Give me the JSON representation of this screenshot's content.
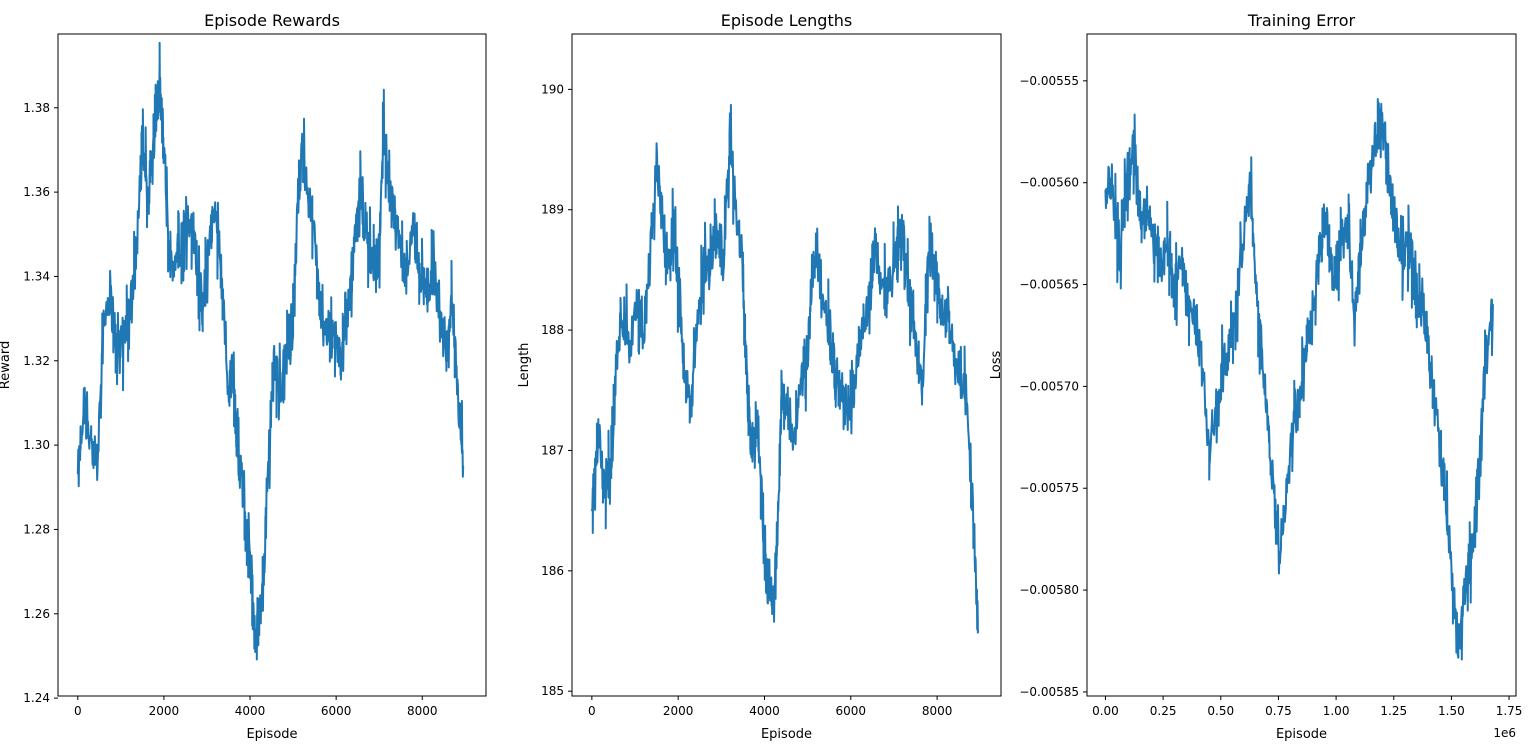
{
  "chart_data": [
    {
      "type": "line",
      "title": "Episode Rewards",
      "xlabel": "Episode",
      "ylabel": "Reward",
      "xlim": [
        -460,
        9480
      ],
      "ylim": [
        1.2405,
        1.3975
      ],
      "xticks": [
        0,
        2000,
        4000,
        6000,
        8000
      ],
      "xtick_labels": [
        "0",
        "2000",
        "4000",
        "6000",
        "8000"
      ],
      "yticks": [
        1.24,
        1.26,
        1.28,
        1.3,
        1.32,
        1.34,
        1.36,
        1.38
      ],
      "ytick_labels": [
        "1.24",
        "1.26",
        "1.28",
        "1.30",
        "1.32",
        "1.34",
        "1.36",
        "1.38"
      ],
      "x_offset_label": "",
      "color": "#1f77b4",
      "grid": false,
      "legend": "none",
      "series": [
        {
          "x": [
            0,
            150,
            300,
            450,
            600,
            750,
            900,
            1050,
            1200,
            1350,
            1500,
            1650,
            1800,
            1900,
            2000,
            2150,
            2300,
            2450,
            2600,
            2750,
            2900,
            3050,
            3200,
            3350,
            3500,
            3600,
            3700,
            3850,
            4000,
            4100,
            4200,
            4300,
            4400,
            4550,
            4700,
            4850,
            5000,
            5100,
            5200,
            5350,
            5500,
            5650,
            5800,
            5950,
            6100,
            6250,
            6400,
            6550,
            6700,
            6850,
            7000,
            7100,
            7200,
            7350,
            7500,
            7650,
            7800,
            7950,
            8100,
            8250,
            8400,
            8550,
            8700,
            8850,
            8950
          ],
          "values": [
            1.292,
            1.31,
            1.3,
            1.295,
            1.33,
            1.336,
            1.325,
            1.322,
            1.333,
            1.345,
            1.37,
            1.36,
            1.376,
            1.385,
            1.37,
            1.34,
            1.345,
            1.35,
            1.355,
            1.345,
            1.33,
            1.35,
            1.355,
            1.34,
            1.31,
            1.32,
            1.3,
            1.29,
            1.275,
            1.255,
            1.257,
            1.265,
            1.29,
            1.32,
            1.315,
            1.32,
            1.33,
            1.355,
            1.37,
            1.36,
            1.35,
            1.33,
            1.328,
            1.325,
            1.322,
            1.33,
            1.345,
            1.36,
            1.35,
            1.343,
            1.345,
            1.375,
            1.36,
            1.355,
            1.345,
            1.34,
            1.353,
            1.34,
            1.335,
            1.342,
            1.33,
            1.32,
            1.335,
            1.31,
            1.295
          ]
        }
      ]
    },
    {
      "type": "line",
      "title": "Episode Lengths",
      "xlabel": "Episode",
      "ylabel": "Length",
      "xlim": [
        -460,
        9480
      ],
      "ylim": [
        184.96,
        190.46
      ],
      "xticks": [
        0,
        2000,
        4000,
        6000,
        8000
      ],
      "xtick_labels": [
        "0",
        "2000",
        "4000",
        "6000",
        "8000"
      ],
      "yticks": [
        185,
        186,
        187,
        188,
        189,
        190
      ],
      "ytick_labels": [
        "185",
        "186",
        "187",
        "188",
        "189",
        "190"
      ],
      "x_offset_label": "",
      "color": "#1f77b4",
      "grid": false,
      "legend": "none",
      "series": [
        {
          "x": [
            0,
            150,
            300,
            450,
            600,
            750,
            900,
            1050,
            1200,
            1350,
            1500,
            1650,
            1800,
            1900,
            2000,
            2150,
            2300,
            2450,
            2600,
            2750,
            2900,
            3050,
            3200,
            3350,
            3500,
            3600,
            3700,
            3850,
            4000,
            4100,
            4200,
            4300,
            4400,
            4550,
            4700,
            4850,
            5000,
            5100,
            5200,
            5350,
            5500,
            5650,
            5800,
            5950,
            6100,
            6250,
            6400,
            6550,
            6700,
            6850,
            7000,
            7100,
            7200,
            7350,
            7500,
            7650,
            7800,
            7950,
            8100,
            8250,
            8400,
            8550,
            8700,
            8850,
            8950
          ],
          "values": [
            186.5,
            187.1,
            186.7,
            186.9,
            187.9,
            188.1,
            187.9,
            188.2,
            188.0,
            188.6,
            189.4,
            188.8,
            188.5,
            188.9,
            188.3,
            187.6,
            187.4,
            188.1,
            188.5,
            188.6,
            188.9,
            188.6,
            189.6,
            188.9,
            188.5,
            187.5,
            187.1,
            187.2,
            186.1,
            185.9,
            185.7,
            186.3,
            187.5,
            187.3,
            187.1,
            187.6,
            187.7,
            188.5,
            188.7,
            188.2,
            188.0,
            187.6,
            187.5,
            187.2,
            187.6,
            188.0,
            188.2,
            188.8,
            188.4,
            188.3,
            188.6,
            188.7,
            188.8,
            188.3,
            187.9,
            187.5,
            188.6,
            188.5,
            188.2,
            188.1,
            187.8,
            187.6,
            187.4,
            186.3,
            185.5
          ]
        }
      ]
    },
    {
      "type": "line",
      "title": "Training Error",
      "xlabel": "Episode",
      "ylabel": "Loss",
      "xlim": [
        -80000,
        1780000
      ],
      "ylim": [
        -0.005852,
        -0.005527
      ],
      "xticks": [
        0,
        250000,
        500000,
        750000,
        1000000,
        1250000,
        1500000,
        1750000
      ],
      "xtick_labels": [
        "0.00",
        "0.25",
        "0.50",
        "0.75",
        "1.00",
        "1.25",
        "1.50",
        "1.75"
      ],
      "yticks": [
        -0.00585,
        -0.0058,
        -0.00575,
        -0.0057,
        -0.00565,
        -0.0056,
        -0.00555
      ],
      "ytick_labels": [
        "−0.00585",
        "−0.00580",
        "−0.00575",
        "−0.00570",
        "−0.00565",
        "−0.00560",
        "−0.00555"
      ],
      "x_offset_label": "1e6",
      "color": "#1f77b4",
      "grid": false,
      "legend": "none",
      "series": [
        {
          "x": [
            0,
            30000,
            60000,
            90000,
            120000,
            150000,
            180000,
            210000,
            240000,
            270000,
            300000,
            330000,
            360000,
            390000,
            420000,
            450000,
            480000,
            510000,
            540000,
            570000,
            600000,
            630000,
            660000,
            690000,
            720000,
            750000,
            780000,
            810000,
            840000,
            870000,
            900000,
            930000,
            960000,
            990000,
            1020000,
            1050000,
            1080000,
            1110000,
            1140000,
            1170000,
            1200000,
            1230000,
            1260000,
            1290000,
            1320000,
            1350000,
            1380000,
            1410000,
            1440000,
            1470000,
            1500000,
            1530000,
            1560000,
            1590000,
            1620000,
            1650000,
            1680000
          ],
          "values": [
            -0.00561,
            -0.0056,
            -0.00564,
            -0.0056,
            -0.00558,
            -0.00562,
            -0.00561,
            -0.00563,
            -0.00564,
            -0.00563,
            -0.00565,
            -0.00564,
            -0.00566,
            -0.00567,
            -0.00569,
            -0.00573,
            -0.00571,
            -0.00569,
            -0.00568,
            -0.00566,
            -0.00562,
            -0.0056,
            -0.00566,
            -0.0057,
            -0.00574,
            -0.00578,
            -0.00576,
            -0.00572,
            -0.00571,
            -0.00568,
            -0.00566,
            -0.00563,
            -0.00562,
            -0.00565,
            -0.00563,
            -0.00562,
            -0.00567,
            -0.00563,
            -0.0056,
            -0.00558,
            -0.00557,
            -0.0056,
            -0.00562,
            -0.00564,
            -0.00563,
            -0.00566,
            -0.00566,
            -0.00569,
            -0.00572,
            -0.00575,
            -0.00579,
            -0.00583,
            -0.0058,
            -0.00578,
            -0.00574,
            -0.00568,
            -0.00566
          ]
        }
      ]
    }
  ]
}
